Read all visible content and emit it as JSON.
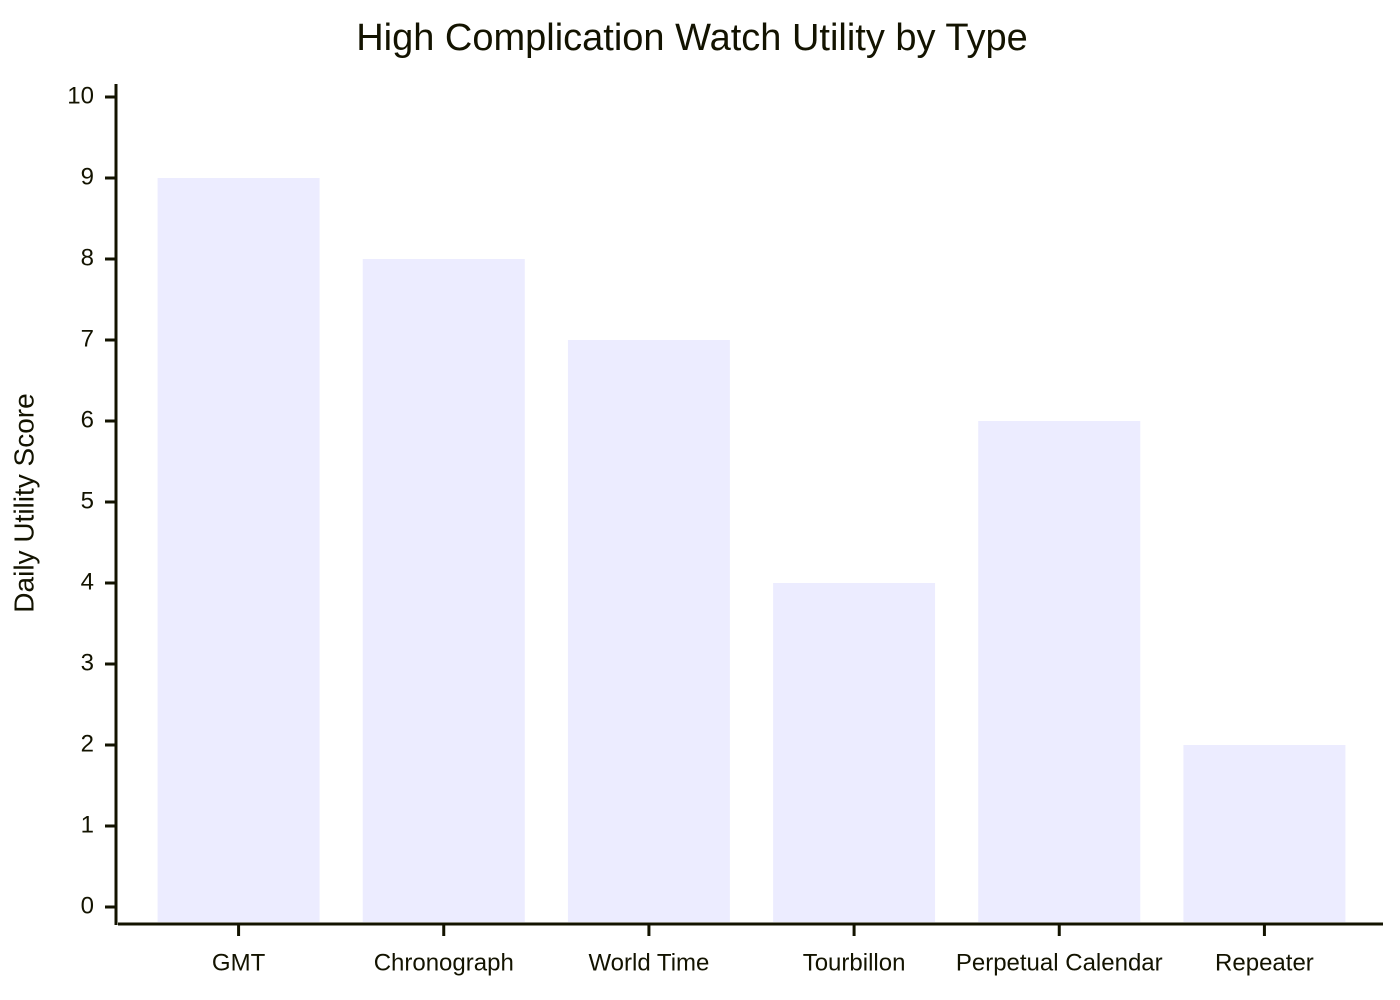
{
  "chart_data": {
    "type": "bar",
    "title": "High Complication Watch Utility by Type",
    "y_label": "Daily Utility Score",
    "categories": [
      "GMT",
      "Chronograph",
      "World Time",
      "Tourbillon",
      "Perpetual Calendar",
      "Repeater"
    ],
    "values": [
      9,
      8,
      7,
      4,
      6,
      2
    ],
    "color": "#ececff",
    "ylim": [
      0,
      10
    ],
    "yticks": [
      0,
      1,
      2,
      3,
      4,
      5,
      6,
      7,
      8,
      9,
      10
    ],
    "grid": false
  }
}
